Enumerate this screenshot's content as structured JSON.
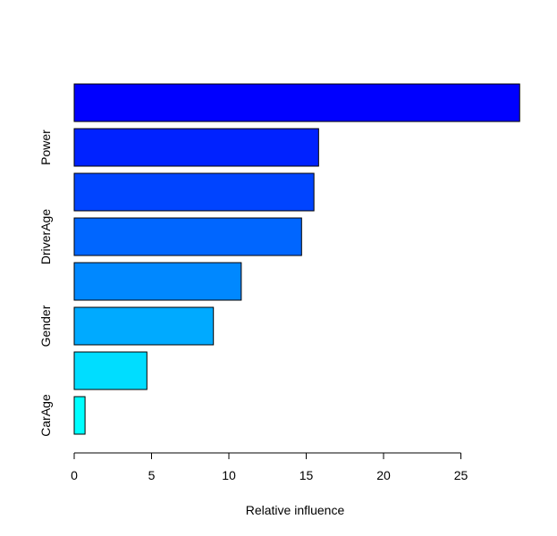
{
  "chart_data": {
    "type": "bar",
    "orientation": "horizontal",
    "title": "",
    "xlabel": "Relative influence",
    "ylabel": "",
    "xlim": [
      0,
      29
    ],
    "x_ticks": [
      0,
      5,
      10,
      15,
      20,
      25
    ],
    "grid": false,
    "legend": "none",
    "bars": [
      {
        "label": "",
        "value": 28.8,
        "color": "#0000FF"
      },
      {
        "label": "Power",
        "value": 15.8,
        "color": "#0022FF"
      },
      {
        "label": "",
        "value": 15.5,
        "color": "#0044FF"
      },
      {
        "label": "DriverAge",
        "value": 14.7,
        "color": "#0066FF"
      },
      {
        "label": "",
        "value": 10.8,
        "color": "#0088FF"
      },
      {
        "label": "Gender",
        "value": 9.0,
        "color": "#00AAFF"
      },
      {
        "label": "",
        "value": 4.7,
        "color": "#00DDFF"
      },
      {
        "label": "CarAge",
        "value": 0.7,
        "color": "#00FFFF"
      }
    ]
  }
}
